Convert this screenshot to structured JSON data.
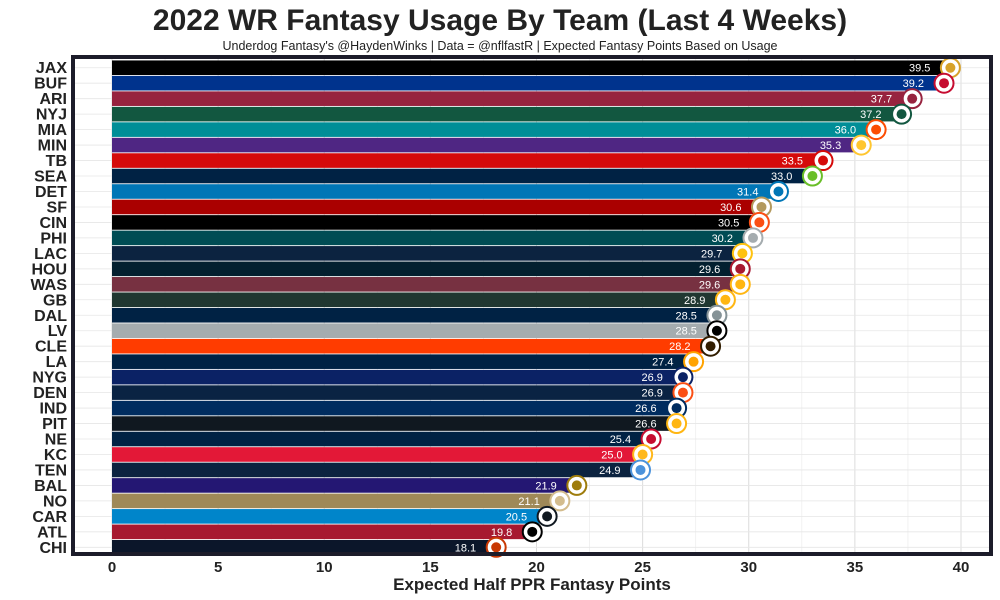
{
  "title": "2022 WR Fantasy Usage By Team (Last 4 Weeks)",
  "subtitle": "Underdog Fantasy's @HaydenWinks | Data = @nflfastR | Expected Fantasy Points Based on Usage",
  "chart_data": {
    "type": "bar",
    "orientation": "horizontal",
    "title": "2022 WR Fantasy Usage By Team (Last 4 Weeks)",
    "xlabel": "Expected Half PPR Fantasy Points",
    "ylabel": "",
    "xlim": [
      0,
      40
    ],
    "xticks": [
      0,
      5,
      10,
      15,
      20,
      25,
      30,
      35,
      40
    ],
    "grid": true,
    "categories": [
      "JAX",
      "BUF",
      "ARI",
      "NYJ",
      "MIA",
      "MIN",
      "TB",
      "SEA",
      "DET",
      "SF",
      "CIN",
      "PHI",
      "LAC",
      "HOU",
      "WAS",
      "GB",
      "DAL",
      "LV",
      "CLE",
      "LA",
      "NYG",
      "DEN",
      "IND",
      "PIT",
      "NE",
      "KC",
      "TEN",
      "BAL",
      "NO",
      "CAR",
      "ATL",
      "CHI"
    ],
    "values": [
      39.5,
      39.2,
      37.7,
      37.2,
      36.0,
      35.3,
      33.5,
      33.0,
      31.4,
      30.6,
      30.5,
      30.2,
      29.7,
      29.6,
      29.6,
      28.9,
      28.5,
      28.5,
      28.2,
      27.4,
      26.9,
      26.9,
      26.6,
      26.6,
      25.4,
      25.0,
      24.9,
      21.9,
      21.1,
      20.5,
      19.8,
      18.1
    ],
    "value_labels": [
      "39.5",
      "39.2",
      "37.7",
      "37.2",
      "36.0",
      "35.3",
      "33.5",
      "33.0",
      "31.4",
      "30.6",
      "30.5",
      "30.2",
      "29.7",
      "29.6",
      "29.6",
      "28.9",
      "28.5",
      "28.5",
      "28.2",
      "27.4",
      "26.9",
      "26.9",
      "26.6",
      "26.6",
      "25.4",
      "25.0",
      "24.9",
      "21.9",
      "21.1",
      "20.5",
      "19.8",
      "18.1"
    ],
    "bar_colors": [
      "#000000",
      "#00338D",
      "#97233F",
      "#125740",
      "#008E97",
      "#4F2683",
      "#D50A0A",
      "#002244",
      "#0076B6",
      "#AA0000",
      "#000000",
      "#004C54",
      "#0C2340",
      "#03202F",
      "#773141",
      "#203731",
      "#002244",
      "#A5ACAF",
      "#FF3C00",
      "#002244",
      "#0B2265",
      "#0A2343",
      "#002C5F",
      "#101820",
      "#002244",
      "#E31837",
      "#0C2340",
      "#241773",
      "#9F8958",
      "#0085CA",
      "#A71930",
      "#0B162A"
    ],
    "logo_colors": [
      "#D7A22A",
      "#C60C30",
      "#97233F",
      "#125740",
      "#FC4C02",
      "#FFC62F",
      "#D50A0A",
      "#69BE28",
      "#0076B6",
      "#B3995D",
      "#FB4F14",
      "#A5ACAF",
      "#FFC20E",
      "#A71930",
      "#FFB612",
      "#FFB612",
      "#869397",
      "#000000",
      "#311D00",
      "#FFA300",
      "#0B2265",
      "#FB4F14",
      "#002C5F",
      "#FFB612",
      "#C60C30",
      "#FFB81C",
      "#4B92DB",
      "#9E7C0C",
      "#D3BC8D",
      "#101820",
      "#000000",
      "#C83803"
    ]
  }
}
